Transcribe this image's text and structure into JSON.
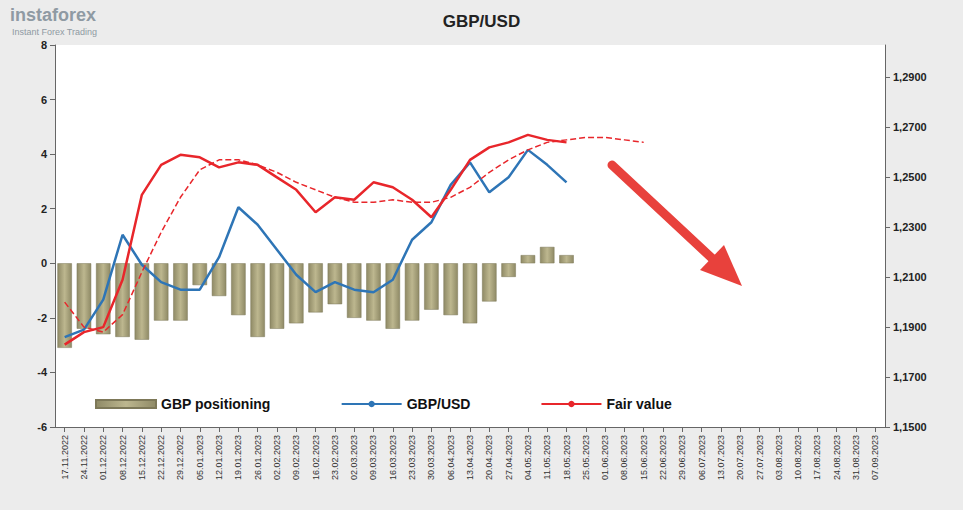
{
  "chart_data": {
    "type": "bar",
    "title": "GBP/USD",
    "annotations": [
      "instaforex",
      "Instant Forex Trading"
    ],
    "categories": [
      "17.11.2022",
      "24.11.2022",
      "01.12.2022",
      "08.12.2022",
      "15.12.2022",
      "22.12.2022",
      "29.12.2022",
      "05.01.2023",
      "12.01.2023",
      "19.01.2023",
      "26.01.2023",
      "02.02.2023",
      "09.02.2023",
      "16.02.2023",
      "23.02.2023",
      "02.03.2023",
      "09.03.2023",
      "16.03.2023",
      "23.03.2023",
      "30.03.2023",
      "06.04.2023",
      "13.04.2023",
      "20.04.2023",
      "27.04.2023",
      "04.05.2023",
      "11.05.2023",
      "18.05.2023",
      "25.05.2023",
      "01.06.2023",
      "08.06.2023",
      "15.06.2023",
      "22.06.2023",
      "29.06.2023",
      "06.07.2023",
      "13.07.2023",
      "20.07.2023",
      "27.07.2023",
      "03.08.2023",
      "10.08.2023",
      "17.08.2023",
      "24.08.2023",
      "31.08.2023",
      "07.09.2023"
    ],
    "ylim": [
      -6,
      8
    ],
    "yticks": [
      -6,
      -4,
      -2,
      0,
      2,
      4,
      6,
      8
    ],
    "y2lim": [
      1.15,
      1.303
    ],
    "y2ticks": [
      {
        "value": 1.15,
        "label": "1,1500"
      },
      {
        "value": 1.17,
        "label": "1,1700"
      },
      {
        "value": 1.19,
        "label": "1,1900"
      },
      {
        "value": 1.21,
        "label": "1,2100"
      },
      {
        "value": 1.23,
        "label": "1,2300"
      },
      {
        "value": 1.25,
        "label": "1,2500"
      },
      {
        "value": 1.27,
        "label": "1,2700"
      },
      {
        "value": 1.29,
        "label": "1,2900"
      }
    ],
    "grid": false,
    "legend": "bottom",
    "series": [
      {
        "name": "GBP positioning",
        "type": "bar",
        "axis": "y",
        "color": "#bdb78f",
        "values": [
          -3.1,
          -2.4,
          -2.6,
          -2.7,
          -2.8,
          -2.1,
          -2.1,
          -0.8,
          -1.2,
          -1.9,
          -2.7,
          -2.4,
          -2.2,
          -1.8,
          -1.5,
          -2.0,
          -2.1,
          -2.4,
          -2.1,
          -1.7,
          -1.9,
          -2.2,
          -1.4,
          -0.5,
          0.3,
          0.6,
          0.3,
          null,
          null,
          null,
          null,
          null,
          null,
          null,
          null,
          null,
          null,
          null,
          null,
          null,
          null,
          null,
          null
        ]
      },
      {
        "name": "GBP/USD",
        "type": "line",
        "axis": "y2",
        "color": "#2e75b6",
        "line_style": "solid",
        "values": [
          1.186,
          1.189,
          1.201,
          1.227,
          1.215,
          1.208,
          1.205,
          1.205,
          1.218,
          1.238,
          1.231,
          1.221,
          1.211,
          1.204,
          1.208,
          1.205,
          1.204,
          1.209,
          1.225,
          1.232,
          1.247,
          1.256,
          1.244,
          1.25,
          1.261,
          1.255,
          1.248,
          null,
          null,
          null,
          null,
          null,
          null,
          null,
          null,
          null,
          null,
          null,
          null,
          null,
          null,
          null,
          null
        ]
      },
      {
        "name": "Fair value",
        "type": "line",
        "axis": "y2",
        "color": "#e8262b",
        "line_style": "solid",
        "values": [
          1.183,
          1.188,
          1.19,
          1.209,
          1.243,
          1.255,
          1.259,
          1.258,
          1.254,
          1.256,
          1.255,
          1.25,
          1.245,
          1.236,
          1.242,
          1.241,
          1.248,
          1.246,
          1.241,
          1.234,
          1.245,
          1.257,
          1.262,
          1.264,
          1.267,
          1.265,
          1.264,
          null,
          null,
          null,
          null,
          null,
          null,
          null,
          null,
          null,
          null,
          null,
          null,
          null,
          null,
          null,
          null
        ]
      },
      {
        "type": "line",
        "axis": "y2",
        "color": "#e8262b",
        "line_style": "dashed",
        "values": [
          1.2,
          1.19,
          1.188,
          1.195,
          1.212,
          1.228,
          1.242,
          1.253,
          1.257,
          1.257,
          1.255,
          1.252,
          1.248,
          1.245,
          1.242,
          1.24,
          1.24,
          1.241,
          1.24,
          1.24,
          1.242,
          1.246,
          1.252,
          1.257,
          1.261,
          1.264,
          1.265,
          1.266,
          1.266,
          1.265,
          1.264,
          null,
          null,
          null,
          null,
          null,
          null,
          null,
          null,
          null,
          null,
          null,
          null
        ]
      }
    ]
  }
}
